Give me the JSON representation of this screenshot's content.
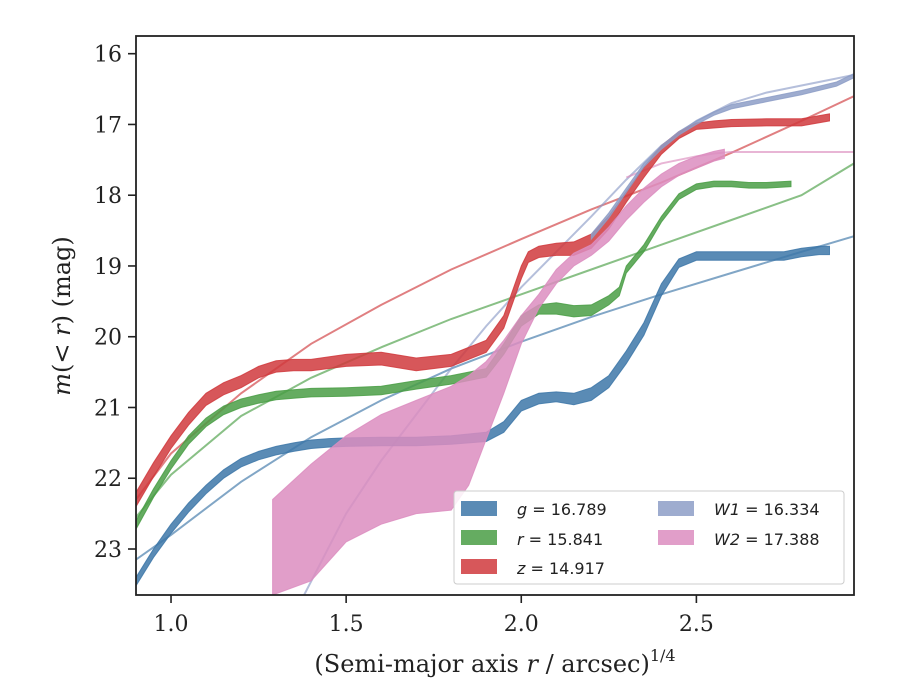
{
  "chart_data": {
    "type": "line",
    "xlabel": "(Semi-major axis r / arcsec)",
    "xlabel_prefix": "(Semi-major axis ",
    "xlabel_var": "r",
    "xlabel_suffix": " / arcsec)",
    "xlabel_exponent": "1/4",
    "ylabel": "m(< r) (mag)",
    "ylabel_m": "m",
    "ylabel_open": "(",
    "ylabel_lt": "< ",
    "ylabel_r": "r",
    "ylabel_close": ") (mag)",
    "xlim": [
      0.9,
      2.95
    ],
    "ylim": [
      23.65,
      15.75
    ],
    "y_inverted": true,
    "grid": false,
    "legend_position": "lower right",
    "xticks": [
      1.0,
      1.5,
      2.0,
      2.5
    ],
    "xtick_labels": [
      "1.0",
      "1.5",
      "2.0",
      "2.5"
    ],
    "yticks": [
      16,
      17,
      18,
      19,
      20,
      21,
      22,
      23
    ],
    "ytick_labels": [
      "16",
      "17",
      "18",
      "19",
      "20",
      "21",
      "22",
      "23"
    ],
    "series": [
      {
        "name": "g",
        "total": "16.789",
        "color": "#3d77a8",
        "x": [
          0.9,
          0.95,
          1.0,
          1.05,
          1.1,
          1.15,
          1.2,
          1.25,
          1.3,
          1.35,
          1.4,
          1.45,
          1.5,
          1.6,
          1.7,
          1.8,
          1.9,
          1.95,
          2.0,
          2.05,
          2.1,
          2.15,
          2.2,
          2.25,
          2.3,
          2.35,
          2.4,
          2.45,
          2.5,
          2.6,
          2.7,
          2.75,
          2.8,
          2.85,
          2.88
        ],
        "y_bright": [
          23.4,
          23.0,
          22.65,
          22.35,
          22.1,
          21.88,
          21.72,
          21.62,
          21.55,
          21.5,
          21.46,
          21.44,
          21.43,
          21.42,
          21.42,
          21.4,
          21.35,
          21.2,
          20.9,
          20.8,
          20.78,
          20.8,
          20.72,
          20.55,
          20.2,
          19.8,
          19.25,
          18.9,
          18.8,
          18.8,
          18.8,
          18.8,
          18.75,
          18.72,
          18.72
        ],
        "y_faint": [
          23.52,
          23.12,
          22.78,
          22.48,
          22.22,
          22.0,
          21.84,
          21.74,
          21.67,
          21.62,
          21.58,
          21.56,
          21.55,
          21.54,
          21.54,
          21.52,
          21.48,
          21.35,
          21.05,
          20.95,
          20.92,
          20.96,
          20.9,
          20.72,
          20.38,
          19.98,
          19.42,
          19.02,
          18.92,
          18.92,
          18.92,
          18.92,
          18.87,
          18.84,
          18.84
        ],
        "model_x": [
          0.9,
          1.0,
          1.2,
          1.4,
          1.6,
          1.8,
          2.0,
          2.2,
          2.4,
          2.6,
          2.8,
          2.95
        ],
        "model_y": [
          23.15,
          22.8,
          22.05,
          21.42,
          20.9,
          20.45,
          20.07,
          19.72,
          19.4,
          19.1,
          18.8,
          18.58
        ]
      },
      {
        "name": "r",
        "total": "15.841",
        "color": "#4a9e45",
        "x": [
          0.9,
          0.95,
          1.0,
          1.05,
          1.1,
          1.15,
          1.2,
          1.25,
          1.3,
          1.35,
          1.4,
          1.5,
          1.6,
          1.7,
          1.8,
          1.9,
          1.95,
          2.0,
          2.05,
          2.1,
          2.15,
          2.2,
          2.25,
          2.28,
          2.3,
          2.35,
          2.4,
          2.45,
          2.5,
          2.55,
          2.6,
          2.65,
          2.7,
          2.77
        ],
        "y_bright": [
          22.6,
          22.15,
          21.75,
          21.4,
          21.15,
          20.98,
          20.88,
          20.82,
          20.77,
          20.75,
          20.73,
          20.72,
          20.7,
          20.62,
          20.55,
          20.45,
          20.1,
          19.7,
          19.55,
          19.52,
          19.56,
          19.55,
          19.42,
          19.3,
          19.0,
          18.7,
          18.3,
          17.98,
          17.84,
          17.8,
          17.8,
          17.82,
          17.82,
          17.8
        ],
        "y_faint": [
          22.72,
          22.27,
          21.87,
          21.52,
          21.27,
          21.1,
          21.0,
          20.94,
          20.89,
          20.87,
          20.85,
          20.84,
          20.82,
          20.74,
          20.67,
          20.57,
          20.25,
          19.85,
          19.68,
          19.68,
          19.72,
          19.7,
          19.55,
          19.42,
          19.1,
          18.8,
          18.38,
          18.06,
          17.92,
          17.88,
          17.88,
          17.9,
          17.9,
          17.88
        ],
        "model_x": [
          0.9,
          1.0,
          1.2,
          1.4,
          1.6,
          1.8,
          2.0,
          2.2,
          2.4,
          2.6,
          2.8,
          2.95
        ],
        "model_y": [
          22.55,
          21.95,
          21.12,
          20.58,
          20.15,
          19.75,
          19.4,
          19.05,
          18.7,
          18.35,
          18.0,
          17.55
        ]
      },
      {
        "name": "z",
        "total": "14.917",
        "color": "#d03a3d",
        "x": [
          0.9,
          0.95,
          1.0,
          1.05,
          1.1,
          1.15,
          1.2,
          1.25,
          1.3,
          1.35,
          1.4,
          1.5,
          1.6,
          1.7,
          1.8,
          1.9,
          1.95,
          2.0,
          2.02,
          2.05,
          2.1,
          2.15,
          2.2,
          2.25,
          2.3,
          2.35,
          2.4,
          2.45,
          2.5,
          2.55,
          2.6,
          2.7,
          2.8,
          2.88
        ],
        "y_bright": [
          22.2,
          21.78,
          21.4,
          21.07,
          20.8,
          20.65,
          20.55,
          20.42,
          20.34,
          20.32,
          20.32,
          20.25,
          20.22,
          20.3,
          20.25,
          20.05,
          19.7,
          19.0,
          18.8,
          18.72,
          18.68,
          18.66,
          18.55,
          18.3,
          17.95,
          17.6,
          17.3,
          17.1,
          16.98,
          16.95,
          16.93,
          16.92,
          16.92,
          16.85
        ],
        "y_faint": [
          22.4,
          21.98,
          21.58,
          21.25,
          20.97,
          20.82,
          20.72,
          20.58,
          20.5,
          20.48,
          20.48,
          20.42,
          20.4,
          20.48,
          20.42,
          20.22,
          19.88,
          19.18,
          18.95,
          18.88,
          18.85,
          18.85,
          18.75,
          18.48,
          18.1,
          17.75,
          17.42,
          17.2,
          17.07,
          17.05,
          17.03,
          17.02,
          17.02,
          16.95
        ],
        "model_x": [
          0.9,
          1.0,
          1.2,
          1.4,
          1.6,
          1.8,
          2.0,
          2.2,
          2.4,
          2.6,
          2.8,
          2.95
        ],
        "model_y": [
          22.3,
          21.65,
          20.8,
          20.1,
          19.55,
          19.05,
          18.62,
          18.2,
          17.82,
          17.4,
          16.95,
          16.6
        ]
      },
      {
        "name": "W1",
        "total": "16.334",
        "color": "#8d9dc7",
        "x": [
          2.2,
          2.25,
          2.3,
          2.35,
          2.4,
          2.45,
          2.5,
          2.55,
          2.6,
          2.7,
          2.8,
          2.9,
          2.95
        ],
        "y_bright": [
          18.55,
          18.25,
          17.9,
          17.55,
          17.3,
          17.1,
          16.95,
          16.82,
          16.72,
          16.62,
          16.52,
          16.4,
          16.28
        ],
        "y_faint": [
          18.62,
          18.32,
          17.96,
          17.6,
          17.35,
          17.15,
          17.0,
          16.87,
          16.78,
          16.68,
          16.58,
          16.46,
          16.34
        ],
        "model_x": [
          1.38,
          1.5,
          1.6,
          1.7,
          1.8,
          1.9,
          2.0,
          2.1,
          2.2,
          2.3,
          2.4,
          2.5,
          2.6,
          2.7,
          2.8,
          2.9,
          2.95
        ],
        "model_y": [
          23.65,
          22.5,
          21.75,
          21.1,
          20.45,
          19.85,
          19.3,
          18.8,
          18.3,
          17.78,
          17.3,
          16.95,
          16.7,
          16.55,
          16.45,
          16.35,
          16.3
        ]
      },
      {
        "name": "W2",
        "total": "17.388",
        "color": "#dc8dbf",
        "x": [
          1.29,
          1.4,
          1.5,
          1.6,
          1.7,
          1.8,
          1.85,
          1.9,
          1.95,
          2.0,
          2.05,
          2.1,
          2.15,
          2.2,
          2.25,
          2.3,
          2.35,
          2.4,
          2.45,
          2.5,
          2.55,
          2.58
        ],
        "y_bright": [
          22.3,
          21.8,
          21.4,
          21.1,
          20.9,
          20.7,
          20.55,
          20.35,
          20.05,
          19.7,
          19.4,
          19.05,
          18.82,
          18.7,
          18.45,
          18.15,
          17.9,
          17.7,
          17.55,
          17.45,
          17.38,
          17.35
        ],
        "y_faint": [
          23.65,
          23.45,
          22.9,
          22.65,
          22.5,
          22.45,
          22.1,
          21.45,
          20.8,
          20.1,
          19.6,
          19.25,
          19.0,
          18.85,
          18.65,
          18.35,
          18.1,
          17.88,
          17.72,
          17.62,
          17.52,
          17.48
        ],
        "model_x": [
          2.3,
          2.4,
          2.5,
          2.55,
          2.6,
          2.7,
          2.8,
          2.9,
          2.95
        ],
        "model_y": [
          17.75,
          17.55,
          17.45,
          17.41,
          17.39,
          17.39,
          17.39,
          17.39,
          17.39
        ]
      }
    ]
  }
}
